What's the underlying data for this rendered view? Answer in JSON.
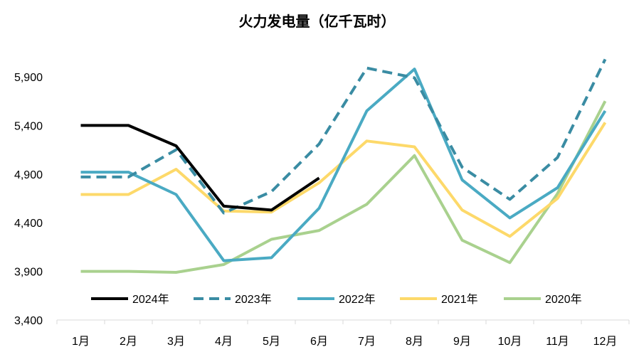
{
  "chart_data": {
    "type": "line",
    "title": "火力发电量（亿千瓦时）",
    "xlabel": "",
    "ylabel": "",
    "categories": [
      "1月",
      "2月",
      "3月",
      "4月",
      "5月",
      "6月",
      "7月",
      "8月",
      "9月",
      "10月",
      "11月",
      "12月"
    ],
    "ylim": [
      3400,
      6200
    ],
    "yticks": [
      "3,400",
      "3,900",
      "4,400",
      "4,900",
      "5,400",
      "5,900"
    ],
    "ytick_values": [
      3400,
      3900,
      4400,
      4900,
      5400,
      5900
    ],
    "grid": false,
    "legend_position": "bottom-inside",
    "series": [
      {
        "name": "2024年",
        "color": "#000000",
        "style": "solid",
        "values": [
          5400,
          5400,
          5190,
          4570,
          4530,
          4860,
          null,
          null,
          null,
          null,
          null,
          null
        ]
      },
      {
        "name": "2023年",
        "color": "#3a8ca3",
        "style": "dashed",
        "values": [
          4870,
          4870,
          5150,
          4500,
          4720,
          5210,
          5990,
          5890,
          4970,
          4640,
          5070,
          6080
        ]
      },
      {
        "name": "2022年",
        "color": "#4aaac3",
        "style": "solid",
        "values": [
          4920,
          4920,
          4690,
          4010,
          4040,
          4550,
          5550,
          5980,
          4840,
          4450,
          4760,
          5550
        ]
      },
      {
        "name": "2021年",
        "color": "#fdd96a",
        "style": "solid",
        "values": [
          4690,
          4690,
          4950,
          4520,
          4510,
          4810,
          5240,
          5180,
          4530,
          4260,
          4650,
          5430
        ]
      },
      {
        "name": "2020年",
        "color": "#a9d18e",
        "style": "solid",
        "values": [
          3900,
          3900,
          3890,
          3970,
          4230,
          4320,
          4590,
          5090,
          4220,
          3990,
          4700,
          5650
        ]
      }
    ]
  }
}
